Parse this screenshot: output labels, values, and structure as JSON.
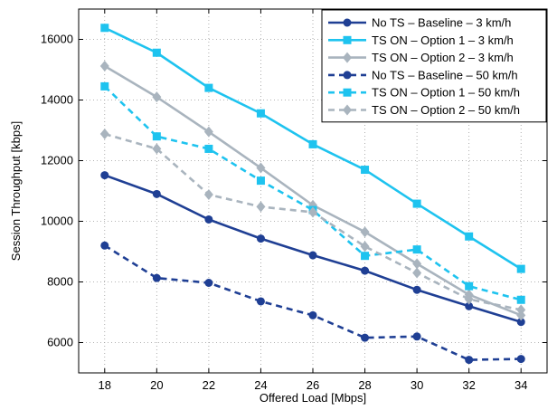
{
  "chart_data": {
    "type": "line",
    "xlabel": "Offered Load [Mbps]",
    "ylabel": "Session Throughput [kbps]",
    "xlim": [
      17,
      35
    ],
    "ylim": [
      5000,
      17000
    ],
    "xticks": [
      18,
      20,
      22,
      24,
      26,
      28,
      30,
      32,
      34
    ],
    "yticks": [
      6000,
      8000,
      10000,
      12000,
      14000,
      16000
    ],
    "grid": true,
    "legend_position": "top-right",
    "x": [
      18,
      20,
      22,
      24,
      26,
      28,
      30,
      32,
      34
    ],
    "series": [
      {
        "name": "No TS – Baseline – 3 km/h",
        "color": "#1f3f94",
        "marker": "circle",
        "dash": "solid",
        "values": [
          11520,
          10900,
          10060,
          9430,
          8880,
          8370,
          7740,
          7200,
          6680
        ]
      },
      {
        "name": "TS ON – Option 1 – 3 km/h",
        "color": "#1ec3ef",
        "marker": "square",
        "dash": "solid",
        "values": [
          16380,
          15560,
          14400,
          13560,
          12540,
          11700,
          10580,
          9500,
          8430
        ]
      },
      {
        "name": "TS ON – Option 2 – 3 km/h",
        "color": "#a9b4be",
        "marker": "diamond",
        "dash": "solid",
        "values": [
          15120,
          14100,
          12950,
          11760,
          10530,
          9650,
          8600,
          7580,
          6900
        ]
      },
      {
        "name": "No TS – Baseline – 50 km/h",
        "color": "#1f3f94",
        "marker": "circle",
        "dash": "dashed",
        "values": [
          9200,
          8130,
          7970,
          7360,
          6900,
          6160,
          6200,
          5430,
          5460
        ]
      },
      {
        "name": "TS ON – Option 1 – 50 km/h",
        "color": "#1ec3ef",
        "marker": "square",
        "dash": "dashed",
        "values": [
          14450,
          12800,
          12390,
          11340,
          10370,
          8860,
          9070,
          7860,
          7410
        ]
      },
      {
        "name": "TS ON – Option 2 – 50 km/h",
        "color": "#a9b4be",
        "marker": "diamond",
        "dash": "dashed",
        "values": [
          12880,
          12390,
          10880,
          10480,
          10300,
          9170,
          8300,
          7430,
          7080
        ]
      }
    ]
  }
}
